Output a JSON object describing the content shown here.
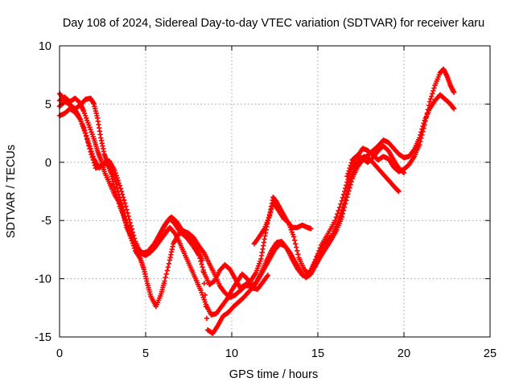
{
  "chart_data": {
    "type": "scatter",
    "title": "Day 108 of 2024, Sidereal Day-to-day VTEC variation (SDTVAR) for receiver karu",
    "xlabel": "GPS time / hours",
    "ylabel": "SDTVAR / TECUs",
    "xlim": [
      0,
      25
    ],
    "ylim": [
      -15,
      10
    ],
    "xticks": [
      0,
      5,
      10,
      15,
      20,
      25
    ],
    "yticks": [
      -15,
      -10,
      -5,
      0,
      5,
      10
    ],
    "grid": true,
    "marker": "+",
    "marker_color": "#ff0000",
    "series": [
      {
        "values": [
          [
            0,
            5.3
          ],
          [
            0.3,
            5.6
          ],
          [
            0.6,
            5.2
          ],
          [
            0.9,
            5.5
          ],
          [
            1.2,
            5.1
          ],
          [
            1.4,
            4.4
          ],
          [
            1.7,
            3.2
          ],
          [
            2.0,
            2.0
          ],
          [
            2.2,
            1.0
          ],
          [
            2.4,
            0.2
          ],
          [
            2.6,
            -0.8
          ],
          [
            2.9,
            -1.8
          ],
          [
            3.2,
            -2.8
          ],
          [
            3.5,
            -3.5
          ],
          [
            3.7,
            -4.4
          ],
          [
            3.9,
            -5.6
          ],
          [
            4.2,
            -6.5
          ],
          [
            4.5,
            -7.3
          ],
          [
            4.8,
            -7.8
          ],
          [
            5.1,
            -7.7
          ],
          [
            5.5,
            -7.0
          ],
          [
            5.8,
            -6.2
          ],
          [
            6.1,
            -5.4
          ],
          [
            6.4,
            -4.8
          ],
          [
            6.7,
            -5.3
          ],
          [
            7.0,
            -6.0
          ],
          [
            7.4,
            -6.5
          ],
          [
            7.8,
            -7.3
          ],
          [
            8.1,
            -8.0
          ],
          [
            8.4,
            -9.5
          ],
          [
            8.7,
            -10.5
          ],
          [
            9.0,
            -10.2
          ],
          [
            9.3,
            -9.3
          ],
          [
            9.6,
            -8.8
          ],
          [
            9.9,
            -9.2
          ],
          [
            10.2,
            -10.0
          ],
          [
            10.5,
            -10.8
          ],
          [
            10.8,
            -10.5
          ],
          [
            11.1,
            -10.2
          ],
          [
            11.4,
            -9.5
          ],
          [
            11.7,
            -8.3
          ],
          [
            11.9,
            -6.6
          ],
          [
            12.1,
            -5.0
          ],
          [
            12.4,
            -3.5
          ],
          [
            12.7,
            -4.1
          ],
          [
            13.0,
            -4.8
          ],
          [
            13.3,
            -5.2
          ],
          [
            13.6,
            -6.4
          ],
          [
            13.9,
            -8.2
          ],
          [
            14.2,
            -9.2
          ],
          [
            14.5,
            -9.6
          ],
          [
            14.8,
            -8.6
          ],
          [
            15.2,
            -7.1
          ],
          [
            15.6,
            -6.1
          ],
          [
            16.0,
            -5.0
          ],
          [
            16.4,
            -3.3
          ],
          [
            16.7,
            -1.7
          ],
          [
            17.0,
            -0.4
          ],
          [
            17.3,
            0.5
          ],
          [
            17.6,
            1.2
          ],
          [
            17.9,
            1.0
          ],
          [
            18.2,
            0.6
          ],
          [
            18.5,
            0.2
          ],
          [
            18.8,
            0.5
          ],
          [
            19.1,
            0.3
          ],
          [
            19.4,
            -0.4
          ],
          [
            19.7,
            -0.8
          ],
          [
            20.0,
            -0.6
          ],
          [
            20.3,
            -0.2
          ],
          [
            20.6,
            0.5
          ],
          [
            20.9,
            1.5
          ],
          [
            21.2,
            3.2
          ],
          [
            21.5,
            5.2
          ],
          [
            21.8,
            6.6
          ],
          [
            22.1,
            7.7
          ],
          [
            22.3,
            8.0
          ],
          [
            22.5,
            7.4
          ],
          [
            22.7,
            6.6
          ],
          [
            22.9,
            6.0
          ]
        ]
      },
      {
        "values": [
          [
            0,
            4.0
          ],
          [
            0.3,
            4.2
          ],
          [
            0.6,
            4.6
          ],
          [
            0.9,
            4.3
          ],
          [
            1.2,
            3.7
          ],
          [
            1.5,
            2.5
          ],
          [
            1.8,
            0.9
          ],
          [
            2.1,
            -0.5
          ],
          [
            2.4,
            -0.3
          ],
          [
            2.7,
            -0.1
          ],
          [
            3.0,
            -0.6
          ],
          [
            3.3,
            -1.9
          ],
          [
            3.6,
            -3.6
          ],
          [
            3.9,
            -5.2
          ],
          [
            4.1,
            -6.3
          ],
          [
            4.4,
            -7.6
          ],
          [
            4.7,
            -8.3
          ],
          [
            4.9,
            -9.2
          ],
          [
            5.1,
            -10.4
          ],
          [
            5.3,
            -11.5
          ],
          [
            5.6,
            -12.4
          ],
          [
            5.9,
            -11.3
          ],
          [
            6.1,
            -10.2
          ],
          [
            6.4,
            -8.4
          ],
          [
            6.6,
            -7.0
          ],
          [
            6.9,
            -6.2
          ],
          [
            7.2,
            -5.9
          ],
          [
            7.5,
            -6.1
          ],
          [
            7.8,
            -6.5
          ],
          [
            8.1,
            -7.2
          ],
          [
            8.4,
            -7.8
          ],
          [
            8.7,
            -8.7
          ],
          [
            9.0,
            -9.6
          ],
          [
            9.3,
            -10.6
          ],
          [
            9.6,
            -11.2
          ],
          [
            9.9,
            -11.6
          ],
          [
            10.2,
            -11.4
          ],
          [
            10.5,
            -11.0
          ],
          [
            10.8,
            -10.6
          ],
          [
            11.1,
            -10.6
          ],
          [
            11.4,
            -10.4
          ],
          [
            11.7,
            -9.5
          ],
          [
            12.0,
            -8.5
          ],
          [
            12.3,
            -7.6
          ],
          [
            12.6,
            -6.9
          ],
          [
            12.9,
            -6.8
          ],
          [
            13.2,
            -7.4
          ],
          [
            13.5,
            -8.3
          ],
          [
            13.8,
            -9.1
          ],
          [
            14.1,
            -9.7
          ],
          [
            14.4,
            -9.8
          ],
          [
            14.7,
            -9.0
          ],
          [
            15.0,
            -8.0
          ],
          [
            15.4,
            -7.0
          ],
          [
            15.8,
            -6.3
          ],
          [
            16.2,
            -5.1
          ],
          [
            16.5,
            -3.6
          ],
          [
            16.8,
            -1.8
          ],
          [
            17.1,
            -0.6
          ],
          [
            17.4,
            0.2
          ],
          [
            17.7,
            0.5
          ],
          [
            18.0,
            0.3
          ],
          [
            18.3,
            -0.2
          ],
          [
            18.6,
            -0.7
          ],
          [
            18.9,
            -1.2
          ],
          [
            19.2,
            -1.7
          ],
          [
            19.5,
            -2.2
          ],
          [
            19.7,
            -2.5
          ]
        ]
      },
      {
        "values": [
          [
            0,
            5.9
          ],
          [
            0.3,
            5.4
          ],
          [
            0.6,
            4.9
          ],
          [
            0.9,
            4.6
          ],
          [
            1.2,
            4.9
          ],
          [
            1.5,
            5.4
          ],
          [
            1.8,
            5.5
          ],
          [
            2.0,
            5.0
          ],
          [
            2.2,
            3.8
          ],
          [
            2.4,
            2.1
          ],
          [
            2.6,
            0.7
          ],
          [
            2.8,
            -0.1
          ],
          [
            3.0,
            -1.0
          ],
          [
            3.2,
            -2.3
          ],
          [
            3.5,
            -3.8
          ],
          [
            3.8,
            -4.9
          ],
          [
            4.0,
            -5.8
          ],
          [
            4.3,
            -6.8
          ],
          [
            4.6,
            -7.5
          ],
          [
            4.9,
            -7.9
          ],
          [
            5.2,
            -7.8
          ],
          [
            5.5,
            -7.4
          ],
          [
            5.8,
            -6.8
          ],
          [
            6.1,
            -6.2
          ],
          [
            6.4,
            -5.6
          ],
          [
            6.7,
            -6.1
          ],
          [
            7.0,
            -7.0
          ],
          [
            7.3,
            -8.0
          ],
          [
            7.6,
            -9.0
          ],
          [
            7.9,
            -10.0
          ],
          [
            8.2,
            -11.0
          ],
          [
            8.5,
            -12.2
          ],
          [
            8.8,
            -13.1
          ],
          [
            9.1,
            -13.0
          ],
          [
            9.4,
            -12.4
          ],
          [
            9.7,
            -11.8
          ],
          [
            10.0,
            -11.0
          ],
          [
            10.3,
            -10.3
          ],
          [
            10.6,
            -9.6
          ],
          [
            10.9,
            -10.0
          ],
          [
            11.2,
            -10.8
          ],
          [
            11.5,
            -10.9
          ],
          [
            11.8,
            -10.3
          ],
          [
            12.1,
            -9.7
          ]
        ]
      },
      {
        "values": [
          [
            0,
            4.8
          ],
          [
            0.3,
            5.2
          ],
          [
            0.6,
            5.0
          ],
          [
            0.9,
            4.5
          ],
          [
            1.1,
            4.0
          ],
          [
            1.4,
            3.0
          ],
          [
            1.7,
            1.6
          ],
          [
            2.0,
            0.3
          ],
          [
            2.3,
            -0.5
          ],
          [
            2.6,
            0.0
          ],
          [
            2.9,
            0.1
          ],
          [
            3.2,
            -0.7
          ],
          [
            3.5,
            -2.0
          ],
          [
            3.8,
            -3.5
          ],
          [
            4.1,
            -5.2
          ],
          [
            4.4,
            -6.8
          ],
          [
            4.7,
            -7.8
          ],
          [
            5.0,
            -8.0
          ],
          [
            5.3,
            -7.7
          ],
          [
            5.6,
            -7.0
          ],
          [
            5.9,
            -6.1
          ],
          [
            6.2,
            -5.2
          ],
          [
            6.5,
            -4.7
          ],
          [
            6.8,
            -5.1
          ],
          [
            7.1,
            -5.8
          ],
          [
            7.4,
            -6.3
          ],
          [
            7.7,
            -6.8
          ],
          [
            8.0,
            -7.5
          ],
          [
            8.3,
            -8.4
          ],
          [
            8.6,
            -14.4
          ],
          [
            8.9,
            -14.7
          ],
          [
            9.2,
            -14.0
          ],
          [
            9.5,
            -13.2
          ],
          [
            9.8,
            -12.9
          ],
          [
            10.1,
            -12.4
          ],
          [
            10.4,
            -12.0
          ],
          [
            10.7,
            -11.6
          ],
          [
            11.0,
            -11.1
          ],
          [
            11.3,
            -10.6
          ],
          [
            11.6,
            -9.9
          ],
          [
            11.9,
            -9.1
          ],
          [
            12.2,
            -8.3
          ],
          [
            12.5,
            -7.5
          ],
          [
            12.8,
            -7.0
          ],
          [
            13.1,
            -7.2
          ],
          [
            13.4,
            -7.8
          ],
          [
            13.7,
            -8.6
          ],
          [
            14.0,
            -9.4
          ],
          [
            14.3,
            -9.9
          ],
          [
            14.6,
            -9.6
          ],
          [
            14.9,
            -8.8
          ],
          [
            15.2,
            -8.0
          ],
          [
            15.5,
            -7.3
          ],
          [
            15.8,
            -6.6
          ],
          [
            16.1,
            -5.8
          ],
          [
            16.4,
            -4.7
          ],
          [
            16.7,
            -3.0
          ],
          [
            17.0,
            -1.4
          ],
          [
            17.3,
            -0.4
          ],
          [
            17.6,
            0.2
          ],
          [
            17.9,
            0.6
          ],
          [
            18.2,
            1.0
          ],
          [
            18.5,
            1.4
          ],
          [
            18.8,
            1.9
          ],
          [
            19.1,
            1.7
          ],
          [
            19.4,
            1.2
          ],
          [
            19.7,
            0.7
          ],
          [
            20.0,
            0.4
          ],
          [
            20.3,
            0.5
          ],
          [
            20.6,
            1.1
          ],
          [
            20.9,
            2.1
          ],
          [
            21.2,
            3.6
          ],
          [
            21.5,
            4.6
          ],
          [
            21.8,
            5.3
          ],
          [
            22.1,
            5.8
          ],
          [
            22.4,
            5.4
          ],
          [
            22.7,
            5.0
          ],
          [
            22.9,
            4.6
          ]
        ]
      },
      {
        "values": [
          [
            11.3,
            -7.0
          ],
          [
            11.6,
            -6.4
          ],
          [
            11.9,
            -5.7
          ],
          [
            12.2,
            -4.6
          ],
          [
            12.4,
            -3.0
          ],
          [
            12.6,
            -3.4
          ],
          [
            12.9,
            -4.2
          ],
          [
            13.2,
            -5.0
          ],
          [
            13.5,
            -5.6
          ],
          [
            13.8,
            -5.6
          ],
          [
            14.1,
            -5.4
          ],
          [
            14.4,
            -5.6
          ],
          [
            14.6,
            -5.7
          ],
          [
            16.7,
            -1.2
          ],
          [
            17.0,
            0.2
          ],
          [
            17.3,
            0.6
          ],
          [
            17.6,
            0.3
          ],
          [
            17.9,
            0.0
          ],
          [
            18.2,
            0.4
          ],
          [
            18.5,
            1.0
          ],
          [
            18.8,
            1.4
          ],
          [
            19.1,
            1.0
          ],
          [
            19.4,
            0.2
          ],
          [
            19.7,
            -0.5
          ],
          [
            20.0,
            -0.9
          ]
        ]
      }
    ]
  }
}
